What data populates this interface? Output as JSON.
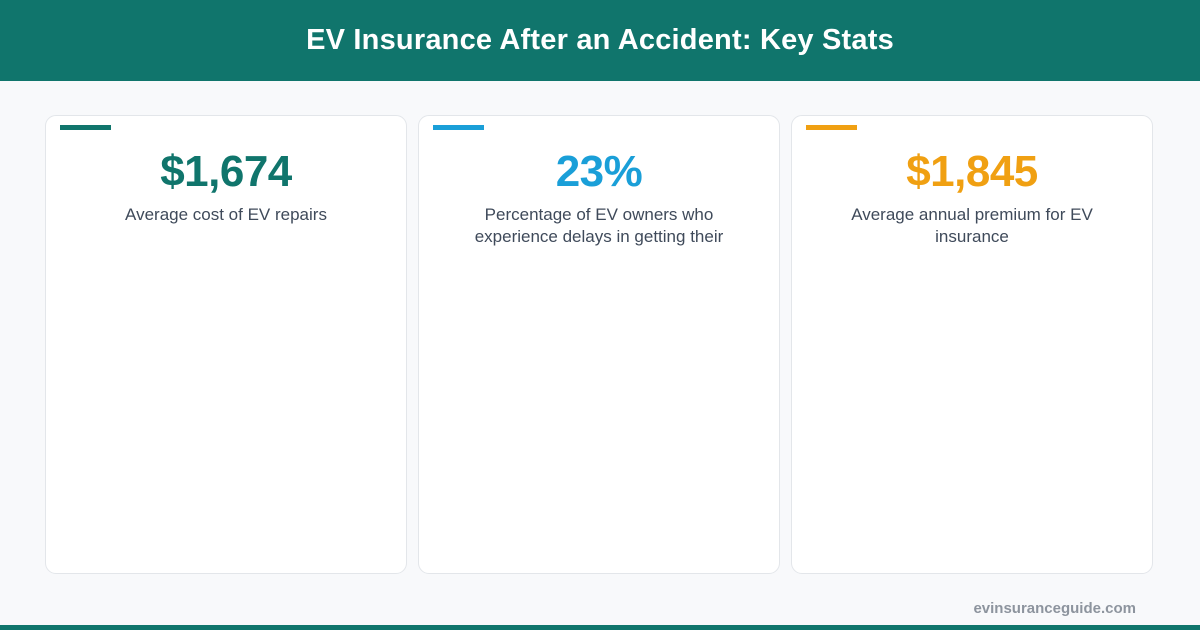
{
  "header": {
    "title": "EV Insurance After an Accident: Key Stats"
  },
  "stats": [
    {
      "value": "$1,674",
      "label": "Average cost of EV repairs",
      "color": "#10756c"
    },
    {
      "value": "23%",
      "label": "Percentage of EV owners who experience delays in getting their",
      "color": "#1a9fd8"
    },
    {
      "value": "$1,845",
      "label": "Average annual premium for EV insurance",
      "color": "#f0a012"
    }
  ],
  "footer": {
    "url": "evinsuranceguide.com"
  },
  "colors": {
    "brand": "#10756c",
    "background": "#f8f9fb",
    "label_text": "#3f4a5a",
    "footer_text": "#8d949e"
  }
}
